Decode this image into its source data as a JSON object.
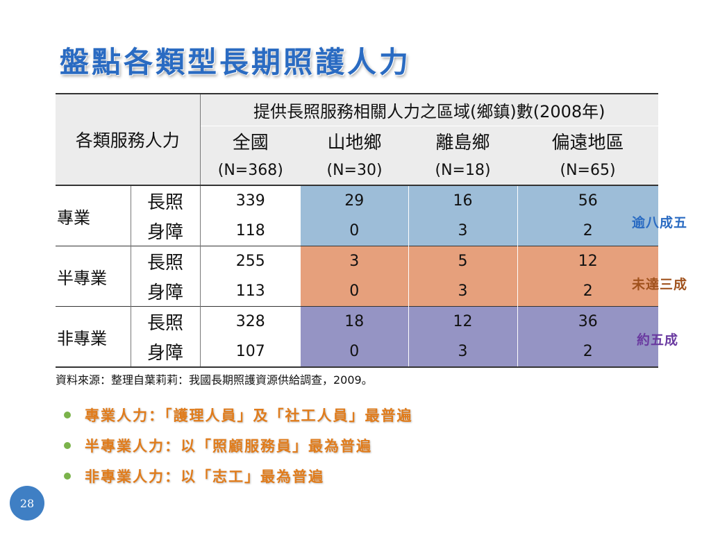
{
  "title": "盤點各類型長期照護人力",
  "table": {
    "corner_label": "各類服務人力",
    "super_header": "提供長照服務相關人力之區域(鄉鎮)數(2008年)",
    "columns": [
      {
        "name": "全國",
        "n": "(N=368)"
      },
      {
        "name": "山地鄉",
        "n": "(N=30)"
      },
      {
        "name": "離島鄉",
        "n": "(N=18)"
      },
      {
        "name": "偏遠地區",
        "n": "(N=65)"
      }
    ],
    "groups": [
      {
        "label": "專業",
        "rows": [
          {
            "sub": "長照",
            "values": [
              "339",
              "29",
              "16",
              "56"
            ]
          },
          {
            "sub": "身障",
            "values": [
              "118",
              "0",
              "3",
              "2"
            ]
          }
        ]
      },
      {
        "label": "半專業",
        "rows": [
          {
            "sub": "長照",
            "values": [
              "255",
              "3",
              "5",
              "12"
            ]
          },
          {
            "sub": "身障",
            "values": [
              "113",
              "0",
              "3",
              "2"
            ]
          }
        ]
      },
      {
        "label": "非專業",
        "rows": [
          {
            "sub": "長照",
            "values": [
              "328",
              "18",
              "12",
              "36"
            ]
          },
          {
            "sub": "身障",
            "values": [
              "107",
              "0",
              "3",
              "2"
            ]
          }
        ]
      }
    ]
  },
  "notes": [
    "逾八成五",
    "未達三成",
    "約五成"
  ],
  "source": "資料來源：整理自葉莉莉：我國長期照護資源供給調查，2009。",
  "bullets": [
    "專業人力：「護理人員」及「社工人員」最普遍",
    "半專業人力：以「照顧服務員」最為普遍",
    "非專業人力：以「志工」最為普遍"
  ],
  "page_number": "28",
  "colors": {
    "title": "#2a6bc2",
    "band_professional": "#9dbdd8",
    "band_semi": "#e6a07c",
    "band_non": "#9594c4",
    "bullet_text": "#e07c1c",
    "bullet_dot": "#7bb34b",
    "page_badge": "#3f7fc4"
  }
}
